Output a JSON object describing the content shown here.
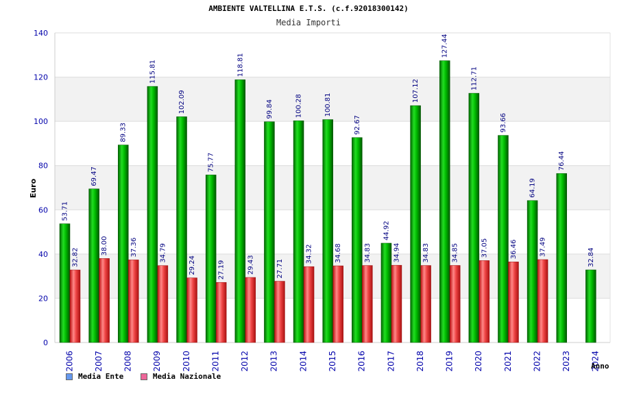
{
  "chart_data": {
    "type": "bar",
    "title": "AMBIENTE VALTELLINA E.T.S. (c.f.92018300142)",
    "subtitle": "Media Importi",
    "xlabel": "Anno",
    "ylabel": "Euro",
    "ylim": [
      0,
      140
    ],
    "yticks": [
      "0",
      "20",
      "40",
      "60",
      "80",
      "100",
      "120",
      "140"
    ],
    "categories": [
      "2006",
      "2007",
      "2008",
      "2009",
      "2010",
      "2011",
      "2012",
      "2013",
      "2014",
      "2015",
      "2016",
      "2017",
      "2018",
      "2019",
      "2020",
      "2021",
      "2022",
      "2023",
      "2024"
    ],
    "series": [
      {
        "name": "Media Ente",
        "color": "#00aa00",
        "values": [
          53.71,
          69.47,
          89.33,
          115.81,
          102.09,
          75.77,
          118.81,
          99.84,
          100.28,
          100.81,
          92.67,
          44.92,
          107.12,
          127.44,
          112.71,
          93.66,
          64.19,
          76.44,
          32.84
        ],
        "labels": [
          "53.71",
          "69.47",
          "89.33",
          "115.81",
          "102.09",
          "75.77",
          "118.81",
          "99.84",
          "100.28",
          "100.81",
          "92.67",
          "44.92",
          "107.12",
          "127.44",
          "112.71",
          "93.66",
          "64.19",
          "76.44",
          "32.84"
        ]
      },
      {
        "name": "Media Nazionale",
        "color": "#dd3333",
        "values": [
          32.82,
          38.0,
          37.36,
          34.79,
          29.24,
          27.19,
          29.43,
          27.71,
          34.32,
          34.68,
          34.83,
          34.94,
          34.83,
          34.85,
          37.05,
          36.46,
          37.49,
          null,
          null
        ],
        "labels": [
          "32.82",
          "38.00",
          "37.36",
          "34.79",
          "29.24",
          "27.19",
          "29.43",
          "27.71",
          "34.32",
          "34.68",
          "34.83",
          "34.94",
          "34.83",
          "34.85",
          "37.05",
          "36.46",
          "37.49",
          "",
          ""
        ]
      }
    ],
    "legend": [
      {
        "label": "Media Ente",
        "color": "#6699ee"
      },
      {
        "label": "Media Nazionale",
        "color": "#ee6699"
      }
    ]
  }
}
